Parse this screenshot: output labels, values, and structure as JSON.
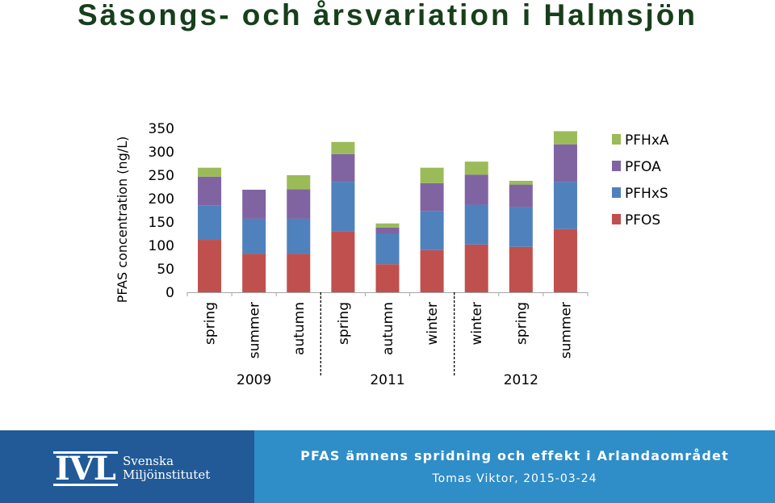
{
  "slide": {
    "title": "Säsongs- och årsvariation i Halmsjön"
  },
  "chart_data": {
    "type": "bar",
    "stacked": true,
    "ylabel": "PFAS concentration (ng/L)",
    "ylim": [
      0,
      350
    ],
    "yticks": [
      0,
      50,
      100,
      150,
      200,
      250,
      300,
      350
    ],
    "grid": false,
    "legend": "right",
    "categories": [
      "spring",
      "summer",
      "autumn",
      "spring",
      "autumn",
      "winter",
      "winter",
      "spring",
      "summer"
    ],
    "groups": [
      {
        "label": "2009",
        "categories": [
          "spring",
          "summer",
          "autumn"
        ]
      },
      {
        "label": "2011",
        "categories": [
          "spring",
          "autumn",
          "winter"
        ]
      },
      {
        "label": "2012",
        "categories": [
          "winter",
          "spring",
          "summer"
        ]
      }
    ],
    "series": [
      {
        "name": "PFOS",
        "color": "#c0504d",
        "values": [
          112,
          82,
          82,
          130,
          60,
          90,
          102,
          97,
          135
        ]
      },
      {
        "name": "PFHxS",
        "color": "#4f81bd",
        "values": [
          73,
          75,
          75,
          106,
          65,
          83,
          85,
          85,
          101
        ]
      },
      {
        "name": "PFOA",
        "color": "#8064a2",
        "values": [
          62,
          62,
          63,
          59,
          13,
          60,
          64,
          48,
          80
        ]
      },
      {
        "name": "PFHxA",
        "color": "#9bbb59",
        "values": [
          19,
          0,
          30,
          26,
          9,
          33,
          28,
          8,
          28
        ]
      }
    ],
    "legend_order": [
      "PFHxA",
      "PFOA",
      "PFHxS",
      "PFOS"
    ]
  },
  "footer": {
    "logo_mark": "IVL",
    "logo_line1": "Svenska",
    "logo_line2": "Miljöinstitutet",
    "title": "PFAS ämnens spridning och effekt i Arlandaområdet",
    "subtitle": "Tomas Viktor, 2015-03-24"
  }
}
